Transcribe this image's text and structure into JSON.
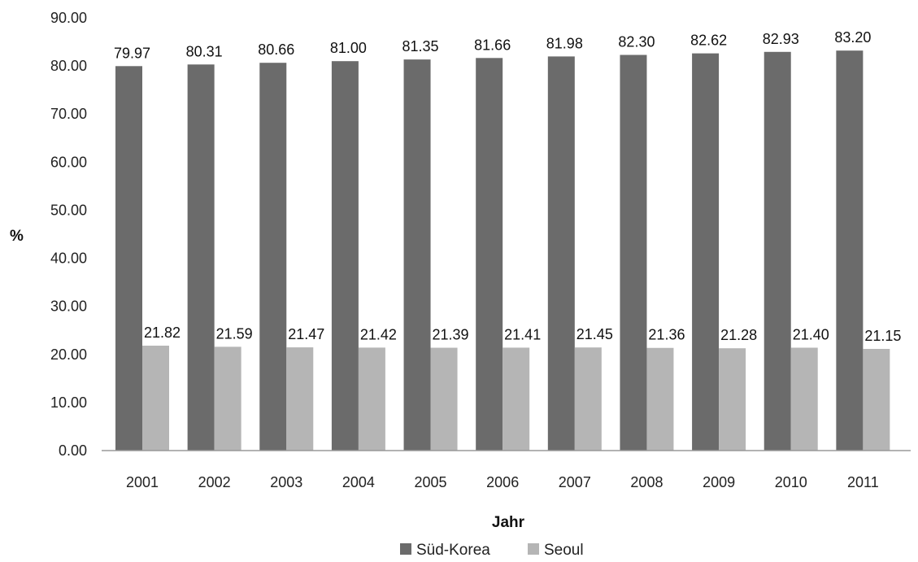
{
  "chart_data": {
    "type": "bar",
    "title": "",
    "xlabel": "Jahr",
    "ylabel": "%",
    "ylim": [
      0,
      90
    ],
    "yticks": [
      "0.00",
      "10.00",
      "20.00",
      "30.00",
      "40.00",
      "50.00",
      "60.00",
      "70.00",
      "80.00",
      "90.00"
    ],
    "categories": [
      "2001",
      "2002",
      "2003",
      "2004",
      "2005",
      "2006",
      "2007",
      "2008",
      "2009",
      "2010",
      "2011"
    ],
    "series": [
      {
        "name": "Süd-Korea",
        "color": "#6b6b6b",
        "values": [
          79.97,
          80.31,
          80.66,
          81.0,
          81.35,
          81.66,
          81.98,
          82.3,
          82.62,
          82.93,
          83.2
        ],
        "labels": [
          "79.97",
          "80.31",
          "80.66",
          "81.00",
          "81.35",
          "81.66",
          "81.98",
          "82.30",
          "82.62",
          "82.93",
          "83.20"
        ]
      },
      {
        "name": "Seoul",
        "color": "#b5b5b5",
        "values": [
          21.82,
          21.59,
          21.47,
          21.42,
          21.39,
          21.41,
          21.45,
          21.36,
          21.28,
          21.4,
          21.15
        ],
        "labels": [
          "21.82",
          "21.59",
          "21.47",
          "21.42",
          "21.39",
          "21.41",
          "21.45",
          "21.36",
          "21.28",
          "21.40",
          "21.15"
        ]
      }
    ],
    "legend_position": "bottom-center",
    "grid": false
  }
}
